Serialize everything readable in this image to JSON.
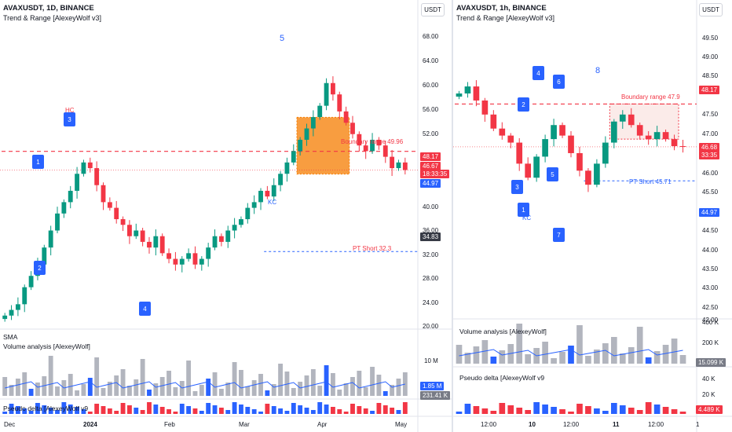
{
  "colors": {
    "up": "#089981",
    "down": "#f23645",
    "blue": "#2962ff",
    "orange": "#f57c00",
    "grey": "#b2b5be"
  },
  "left": {
    "symbol": "AVAXUSDT, 1D, BINANCE",
    "indicator": "Trend & Range [AlexeyWolf v3]",
    "currency": "USDT",
    "price_ticks": [
      "68.00",
      "64.00",
      "60.00",
      "56.00",
      "52.00",
      "48.00",
      "40.00",
      "36.00",
      "32.00",
      "28.00",
      "24.00",
      "20.00"
    ],
    "price_labels": {
      "boundary_hi": "48.17",
      "last": "46.67",
      "countdown": "18:33:35",
      "low_line": "44.97",
      "pt_line": "34.83"
    },
    "annotations": {
      "boundary": "Boundary range 49.96",
      "pt_short": "PT Short 32.3",
      "kc": "KC",
      "hc": "HC",
      "wave5": "5"
    },
    "markers": [
      "1",
      "2",
      "3",
      "4"
    ],
    "sub_sma": "SMA",
    "sub_volume": "Volume analysis [AlexeyWolf]",
    "sub_volume_tick": "10 M",
    "sub_volume_label": "1.85 M",
    "sub_volume_label2": "231.41 K",
    "sub_delta": "Pseudo delta [AlexeyWolf v9",
    "time_ticks": [
      "Dec",
      "2024",
      "Feb",
      "Mar",
      "Apr",
      "May"
    ]
  },
  "right": {
    "symbol": "AVAXUSDT, 1h, BINANCE",
    "indicator": "Trend & Range [AlexeyWolf v3]",
    "currency": "USDT",
    "price_ticks": [
      "49.50",
      "49.00",
      "48.50",
      "47.50",
      "47.00",
      "46.50",
      "46.00",
      "45.50",
      "45.00",
      "44.50",
      "44.00",
      "43.50",
      "43.00",
      "42.50",
      "42.00"
    ],
    "price_labels": {
      "top": "48.17",
      "last": "46.68",
      "countdown": "33:35",
      "low": "44.97"
    },
    "annotations": {
      "boundary": "Boundary range 47.9",
      "pt_short": "PT Short 45.71",
      "wave8": "8",
      "kc": "KC"
    },
    "markers": [
      "4",
      "6",
      "2",
      "3",
      "5",
      "1",
      "7"
    ],
    "sub_volume": "Volume analysis [AlexeyWolf]",
    "sub_volume_ticks": [
      "400 K",
      "200 K"
    ],
    "sub_volume_label": "15.099 K",
    "sub_delta": "Pseudo delta [AlexeyWolf v9",
    "sub_delta_ticks": [
      "40 K",
      "20 K"
    ],
    "sub_delta_label": "4.489 K",
    "time_ticks": [
      "12:00",
      "10",
      "12:00",
      "11",
      "12:00",
      "1"
    ]
  },
  "chart_data": [
    {
      "type": "candlestick",
      "title": "AVAXUSDT, 1D, BINANCE",
      "ylim": [
        20,
        70
      ],
      "series": [
        {
          "name": "AVAXUSDT",
          "close": [
            21,
            22,
            23,
            26,
            28,
            30,
            33,
            36,
            39,
            41,
            43,
            46,
            48,
            47,
            44,
            41,
            40,
            38,
            37,
            35,
            36,
            34,
            33,
            35,
            32,
            31,
            30,
            31,
            32,
            30,
            31,
            33,
            35,
            34,
            36,
            37,
            38,
            40,
            41,
            43,
            42,
            44,
            46,
            48,
            50,
            52,
            54,
            56,
            58,
            62,
            60,
            57,
            55,
            53,
            51,
            50,
            52,
            51,
            49,
            47,
            48,
            46.67
          ]
        }
      ],
      "levels": {
        "boundary_range": 49.96,
        "pt_short": 32.3,
        "last": 46.67
      }
    },
    {
      "type": "candlestick",
      "title": "AVAXUSDT, 1h, BINANCE",
      "ylim": [
        42,
        49.7
      ],
      "series": [
        {
          "name": "AVAXUSDT",
          "close": [
            48.2,
            48.4,
            48.0,
            47.6,
            47.2,
            47.0,
            46.8,
            46.2,
            45.8,
            46.4,
            46.9,
            47.3,
            47.0,
            46.5,
            46.0,
            45.6,
            46.2,
            46.8,
            47.4,
            47.6,
            47.3,
            47.0,
            46.9,
            47.1,
            46.9,
            46.7,
            46.68
          ]
        }
      ],
      "levels": {
        "boundary_range": 47.9,
        "pt_short": 45.71,
        "last": 46.68
      }
    }
  ]
}
